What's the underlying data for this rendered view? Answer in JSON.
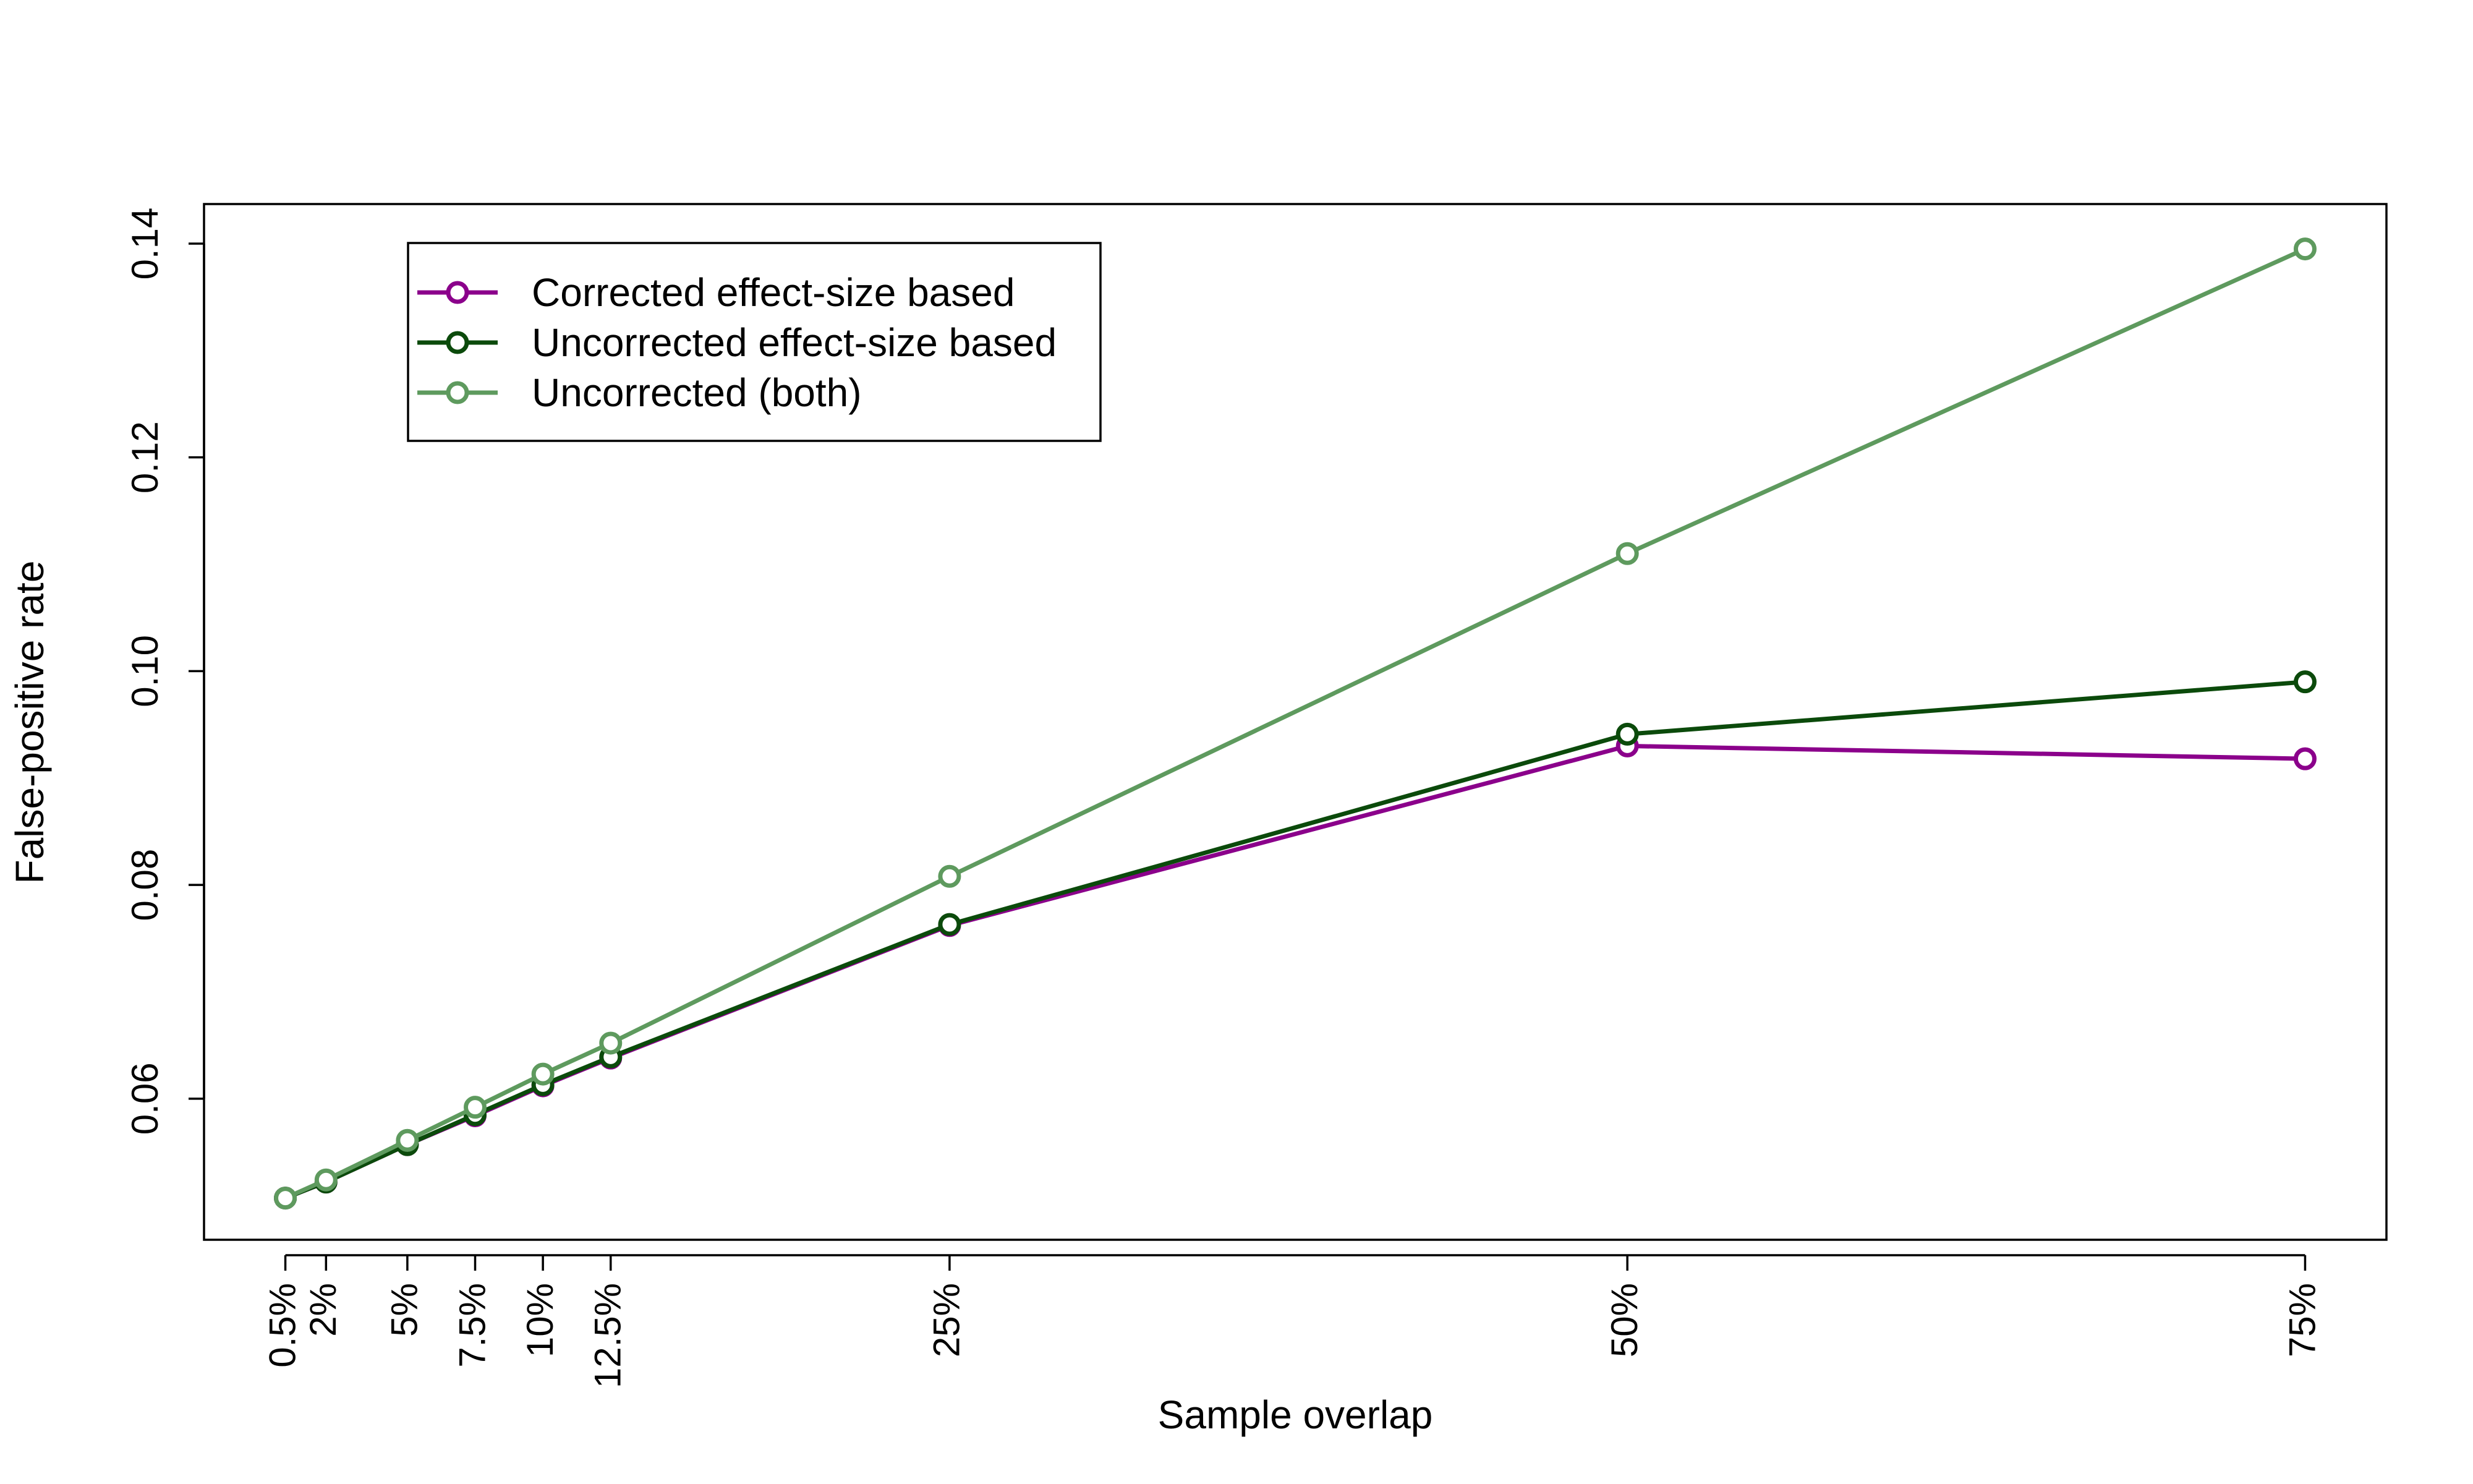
{
  "chart_data": {
    "type": "line",
    "xlabel": "Sample overlap",
    "ylabel": "False-positive rate",
    "x": [
      0.5,
      2,
      5,
      7.5,
      10,
      12.5,
      25,
      50,
      75
    ],
    "x_tick_labels": [
      "0.5%",
      "2%",
      "5%",
      "7.5%",
      "10%",
      "12.5%",
      "25%",
      "50%",
      "75%"
    ],
    "xlim": [
      -2.5,
      78
    ],
    "y_ticks": [
      0.06,
      0.08,
      0.1,
      0.12,
      0.14
    ],
    "y_tick_labels": [
      "0.06",
      "0.08",
      "0.10",
      "0.12",
      "0.14"
    ],
    "ylim": [
      0.0468,
      0.1437
    ],
    "grid": false,
    "legend_position": "top-left",
    "series": [
      {
        "name": "Corrected effect-size based",
        "color": "#8B008B",
        "values": [
          0.0507,
          0.0522,
          0.0557,
          0.0584,
          0.0612,
          0.0638,
          0.0762,
          0.093,
          0.0918
        ]
      },
      {
        "name": "Uncorrected effect-size based",
        "color": "#0B4A0B",
        "values": [
          0.0507,
          0.0522,
          0.0557,
          0.0585,
          0.0613,
          0.0639,
          0.0763,
          0.0941,
          0.099
        ]
      },
      {
        "name": "Uncorrected (both)",
        "color": "#5E9A5E",
        "values": [
          0.0507,
          0.0524,
          0.0561,
          0.0592,
          0.0623,
          0.0652,
          0.0808,
          0.111,
          0.1395
        ]
      }
    ]
  }
}
